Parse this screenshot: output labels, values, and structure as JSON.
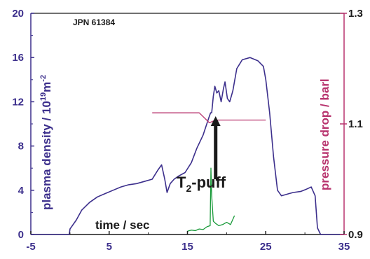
{
  "chart_data": {
    "type": "line",
    "title": "",
    "annotation_pulse": "JPN 61384",
    "xlabel": "time / sec",
    "ylabel": "plasma density / 10",
    "ylabel_exp": "19",
    "ylabel_unit": "m",
    "ylabel_unit_exp": "-2",
    "y2label": "pressure drop / barl",
    "puff_label_main": "T",
    "puff_label_sub": "2",
    "puff_label_rest": "-puff",
    "xlim": [
      -5,
      35
    ],
    "ylim": [
      0,
      20
    ],
    "y2lim": [
      0.9,
      1.3
    ],
    "xticks": [
      "-5",
      "5",
      "15",
      "25",
      "35"
    ],
    "yticks": [
      "0",
      "4",
      "8",
      "12",
      "16",
      "20"
    ],
    "y2ticks": [
      "0.9",
      "1.1",
      "1.3"
    ],
    "colors": {
      "density": "#3c2f8c",
      "pressure": "#b8346e",
      "puff": "#1a9a3a",
      "axis_left": "#3c2f8c",
      "axis_right": "#b8346e",
      "arrow": "#1a1a1a"
    },
    "series": [
      {
        "name": "plasma density",
        "axis": "left",
        "x": [
          -5,
          -0.1,
          0,
          0.8,
          1.5,
          2.5,
          3.5,
          4.5,
          5.5,
          6.5,
          7.5,
          8.5,
          9.5,
          10.5,
          11.2,
          11.7,
          12.1,
          12.4,
          12.8,
          13.3,
          13.9,
          14.7,
          15.5,
          16.2,
          17.0,
          17.7,
          17.95,
          18.1,
          18.3,
          18.5,
          18.75,
          19.0,
          19.3,
          19.6,
          19.8,
          20.1,
          20.4,
          20.8,
          21.3,
          22,
          23,
          24,
          24.7,
          25.0,
          25.5,
          26.0,
          26.5,
          27.0,
          27.5,
          28.0,
          28.5,
          29.5,
          30.2,
          30.8,
          31.3,
          31.6,
          32.0,
          32.3,
          33,
          35
        ],
        "y": [
          0,
          0,
          0.5,
          1.3,
          2.2,
          2.9,
          3.4,
          3.7,
          4.0,
          4.3,
          4.5,
          4.6,
          4.8,
          5.0,
          5.8,
          6.3,
          5.0,
          3.8,
          4.6,
          5.0,
          5.3,
          5.6,
          6.5,
          7.8,
          9.0,
          10.5,
          11.0,
          11.0,
          12.5,
          13.4,
          12.8,
          13.0,
          12.0,
          13.2,
          13.8,
          12.3,
          12.0,
          13.0,
          15.0,
          15.8,
          16.0,
          15.7,
          15.2,
          14.0,
          11.0,
          7.0,
          4.0,
          3.5,
          3.6,
          3.7,
          3.8,
          3.9,
          4.1,
          4.3,
          3.5,
          0.6,
          0,
          0,
          0,
          0
        ]
      },
      {
        "name": "pressure drop",
        "axis": "right",
        "x": [
          10.5,
          16.5,
          17.8,
          18.6,
          25.0
        ],
        "y": [
          1.12,
          1.12,
          1.102,
          1.107,
          1.107
        ]
      },
      {
        "name": "T2 puff",
        "axis": "left",
        "x": [
          15.0,
          15.5,
          16.0,
          16.5,
          17.0,
          17.5,
          17.9,
          18.0,
          18.1,
          18.3,
          18.6,
          19.0,
          19.5,
          20.0,
          20.5,
          21.0
        ],
        "y": [
          0.3,
          0.4,
          0.35,
          0.5,
          0.45,
          0.7,
          0.8,
          6.0,
          3.5,
          1.2,
          1.0,
          0.8,
          0.9,
          1.1,
          0.9,
          1.7
        ]
      }
    ],
    "arrow": {
      "x": 18.6,
      "y_from": 5.0,
      "y_to": 10.7
    }
  }
}
